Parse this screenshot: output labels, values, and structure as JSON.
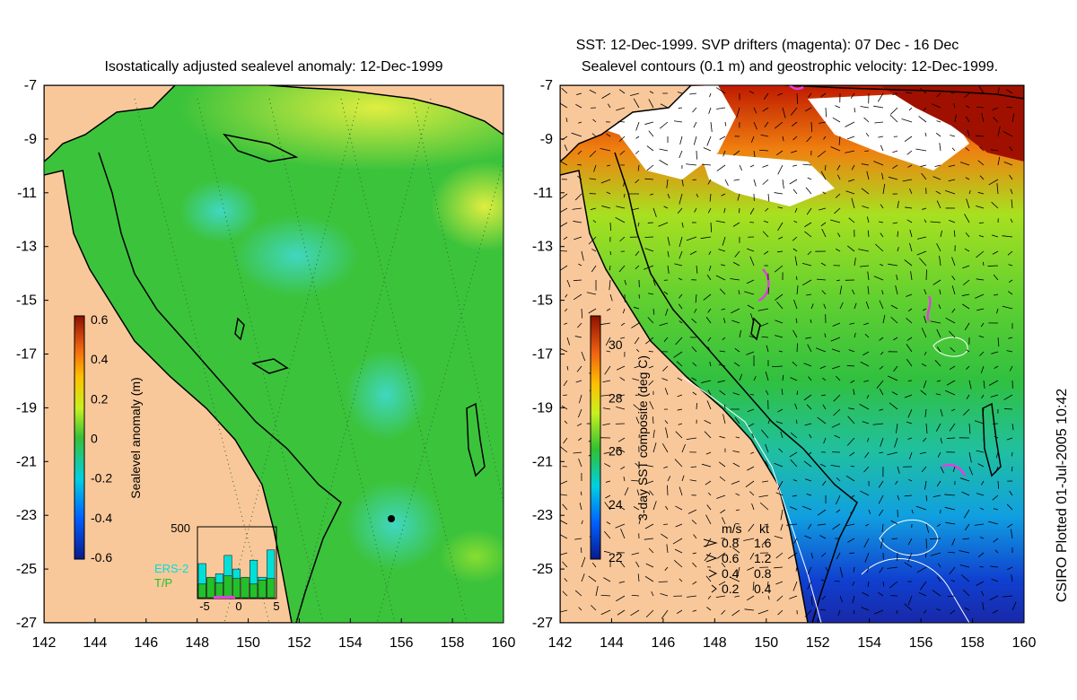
{
  "left_panel": {
    "title": "Isostatically adjusted sealevel anomaly: 12-Dec-1999",
    "colorbar": {
      "label": "Sealevel anomaly (m)",
      "ticks": [
        "0.6",
        "0.4",
        "0.2",
        "0",
        "-0.2",
        "-0.4",
        "-0.6"
      ],
      "range": [
        -0.6,
        0.6
      ]
    },
    "histogram": {
      "ymax_label": "500",
      "legend": [
        {
          "name": "ERS-2",
          "color": "#00e0d8"
        },
        {
          "name": "T/P",
          "color": "#22c02a"
        }
      ],
      "x_ticks": [
        "-5",
        "0",
        "5"
      ],
      "bars_ers2": [
        0.5,
        0.28,
        0.35,
        0.62,
        0.42,
        0.22,
        0.55,
        0.3,
        0.7
      ],
      "bars_tp": [
        0.2,
        0.3,
        0.22,
        0.32,
        0.28,
        0.3,
        0.2,
        0.26,
        0.28
      ]
    }
  },
  "right_panel": {
    "title_line1": "SST: 12-Dec-1999. SVP drifters (magenta): 07 Dec - 16 Dec",
    "title_line2": "Sealevel contours (0.1 m) and geostrophic velocity: 12-Dec-1999.",
    "colorbar": {
      "label": "3-day SST composite (deg C)",
      "ticks": [
        "30",
        "28",
        "26",
        "24",
        "22"
      ],
      "range": [
        22,
        31
      ]
    },
    "vector_legend": {
      "header_ms": "m/s",
      "header_kt": "kt",
      "rows": [
        {
          "ms": "0.8",
          "kt": "1.6"
        },
        {
          "ms": "0.6",
          "kt": "1.2"
        },
        {
          "ms": "0.4",
          "kt": "0.8"
        },
        {
          "ms": "0.2",
          "kt": "0.4"
        }
      ]
    }
  },
  "axes": {
    "y_ticks": [
      "-7",
      "-9",
      "-11",
      "-13",
      "-15",
      "-17",
      "-19",
      "-21",
      "-23",
      "-25",
      "-27"
    ],
    "x_ticks": [
      "142",
      "144",
      "146",
      "148",
      "150",
      "152",
      "154",
      "156",
      "158",
      "160"
    ],
    "lat_range": [
      -27,
      -7
    ],
    "lon_range": [
      142,
      160
    ]
  },
  "credit": "CSIRO Plotted 01-Jul-2005 10:42",
  "colors": {
    "land": "#f9c89a",
    "ocean_anomaly": "#3cc33c",
    "coast": "#000000"
  }
}
